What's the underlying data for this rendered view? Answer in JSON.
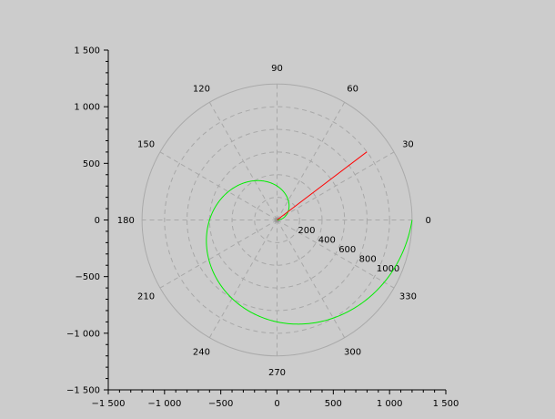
{
  "chart_data": {
    "type": "polar-line",
    "title": "",
    "xlim": [
      -1500,
      1500
    ],
    "ylim": [
      -1500,
      1500
    ],
    "x_ticks": [
      -1500,
      -1000,
      -500,
      0,
      500,
      1000,
      1500
    ],
    "x_tick_labels": [
      "−1 500",
      "−1 000",
      "−500",
      "0",
      "500",
      "1 000",
      "1 500"
    ],
    "y_ticks": [
      -1500,
      -1000,
      -500,
      0,
      500,
      1000,
      1500
    ],
    "y_tick_labels": [
      "−1 500",
      "−1 000",
      "−500",
      "0",
      "500",
      "1 000",
      "1 500"
    ],
    "polar_grid": {
      "radii": [
        200,
        400,
        600,
        800,
        1000,
        1200
      ],
      "radial_labels": [
        "200",
        "400",
        "600",
        "800",
        "1000"
      ],
      "angles_deg": [
        0,
        30,
        60,
        90,
        120,
        150,
        180,
        210,
        240,
        270,
        300,
        330
      ],
      "angle_labels": [
        "0",
        "30",
        "60",
        "90",
        "120",
        "150",
        "180",
        "210",
        "240",
        "270",
        "300",
        "330"
      ]
    },
    "series": [
      {
        "color": "#00ee00",
        "curve": "archimedean-spiral",
        "theta_start_deg": 0,
        "theta_end_deg": 360,
        "r_start": 0,
        "r_end": 1200
      },
      {
        "color": "#ff0000",
        "curve": "radial-line",
        "angle_deg": 37,
        "r_start": 0,
        "r_end": 1000
      }
    ],
    "grid": true,
    "legend": "none"
  }
}
